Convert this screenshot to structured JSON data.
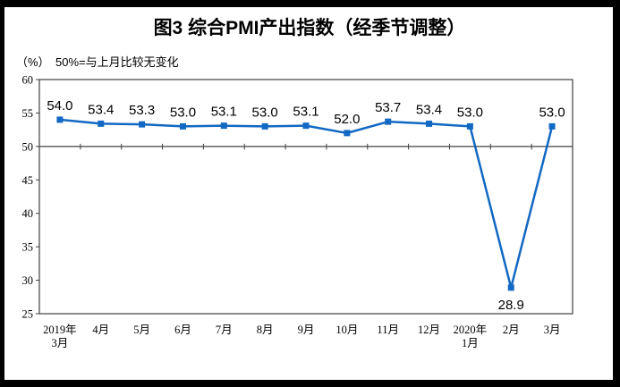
{
  "chart": {
    "title": "图3 综合PMI产出指数（经季节调整）",
    "unit_label": "（%）",
    "note": "50%=与上月比较无变化"
  },
  "chart_data": {
    "type": "line",
    "title": "图3 综合PMI产出指数（经季节调整）",
    "categories": [
      "2019年\n3月",
      "4月",
      "5月",
      "6月",
      "7月",
      "8月",
      "9月",
      "10月",
      "11月",
      "12月",
      "2020年\n1月",
      "2月",
      "3月"
    ],
    "values": [
      54.0,
      53.4,
      53.3,
      53.0,
      53.1,
      53.0,
      53.1,
      52.0,
      53.7,
      53.4,
      53.0,
      28.9,
      53.0
    ],
    "data_labels": [
      "54.0",
      "53.4",
      "53.3",
      "53.0",
      "53.1",
      "53.0",
      "53.1",
      "52.0",
      "53.7",
      "53.4",
      "53.0",
      "28.9",
      "53.0"
    ],
    "ylabel": "（%）",
    "annotation": "50%=与上月比较无变化",
    "ylim": [
      25,
      60
    ],
    "yticks": [
      60,
      55,
      50,
      45,
      40,
      35,
      30,
      25
    ],
    "reference_value": 50,
    "grid": false,
    "legend": false,
    "label_below_indices": [
      11
    ],
    "colors": {
      "line": "#1268C3",
      "marker": "#1268C3",
      "axis": "#404040",
      "reference_line": "#404040",
      "text": "#000000",
      "frame": "#000000",
      "background": "#FFFFFF"
    }
  }
}
